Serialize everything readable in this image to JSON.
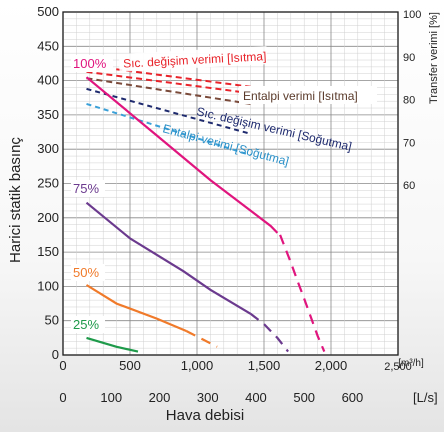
{
  "chart_data": {
    "type": "line",
    "xlabel": "Hava debisi",
    "ylabel": "Harici statik basınç",
    "y2label": "Transfer verimi [%]",
    "x_m3h": {
      "ticks": [
        "0",
        "500",
        "1,000",
        "1,500",
        "2,000"
      ],
      "unit": "[m³/h]",
      "range": [
        0,
        2500
      ]
    },
    "x_ls": {
      "ticks": [
        "0",
        "100",
        "200",
        "300",
        "400",
        "500",
        "600"
      ],
      "unit": "[L/s]"
    },
    "y": {
      "ticks": [
        "0",
        "50",
        "100",
        "150",
        "200",
        "250",
        "300",
        "350",
        "400",
        "450",
        "500"
      ],
      "range": [
        0,
        500
      ]
    },
    "y2": {
      "ticks": [
        "60",
        "70",
        "80",
        "90",
        "100"
      ],
      "range": [
        60,
        100
      ]
    },
    "grid": true,
    "pressure_series": [
      {
        "name": "100%",
        "color": "#e0157e",
        "solid": [
          [
            175,
            405
          ],
          [
            700,
            320
          ],
          [
            1100,
            255
          ],
          [
            1550,
            188
          ],
          [
            1600,
            178
          ]
        ],
        "dashed": [
          [
            1620,
            175
          ],
          [
            1700,
            135
          ],
          [
            1750,
            108
          ],
          [
            1800,
            82
          ],
          [
            1850,
            55
          ],
          [
            1900,
            28
          ],
          [
            1950,
            5
          ]
        ]
      },
      {
        "name": "75%",
        "color": "#6b3a8e",
        "solid": [
          [
            175,
            222
          ],
          [
            500,
            170
          ],
          [
            900,
            122
          ],
          [
            1100,
            95
          ],
          [
            1400,
            60
          ]
        ],
        "dashed": [
          [
            1400,
            60
          ],
          [
            1500,
            45
          ],
          [
            1600,
            25
          ],
          [
            1680,
            5
          ]
        ]
      },
      {
        "name": "50%",
        "color": "#f07a2a",
        "solid": [
          [
            175,
            102
          ],
          [
            400,
            75
          ],
          [
            700,
            53
          ],
          [
            920,
            35
          ]
        ],
        "dashed": [
          [
            920,
            35
          ],
          [
            1050,
            22
          ],
          [
            1150,
            12
          ]
        ]
      },
      {
        "name": "25%",
        "color": "#1e9a4a",
        "solid": [
          [
            175,
            25
          ],
          [
            400,
            12
          ],
          [
            560,
            5
          ]
        ],
        "dashed": []
      }
    ],
    "efficiency_series": [
      {
        "name": "Sıc. değişim verimi [Isıtma]",
        "color": "#e8232a",
        "line1": [
          [
            175,
            88
          ],
          [
            1400,
            83
          ]
        ],
        "line2": [
          [
            175,
            86.5
          ],
          [
            1400,
            81.5
          ]
        ]
      },
      {
        "name": "Entalpi verimi [Isıtma]",
        "color": "#7a4a3a",
        "line": [
          [
            175,
            85
          ],
          [
            1400,
            79
          ]
        ]
      },
      {
        "name": "Sıc. değişim verimi [Soğutma]",
        "color": "#1e2a6e",
        "line": [
          [
            175,
            82.5
          ],
          [
            1400,
            72
          ]
        ]
      },
      {
        "name": "Entalpi verimi [Soğutma]",
        "color": "#3aa0d8",
        "line": [
          [
            175,
            79
          ],
          [
            1100,
            70
          ],
          [
            1400,
            67
          ]
        ]
      }
    ]
  }
}
